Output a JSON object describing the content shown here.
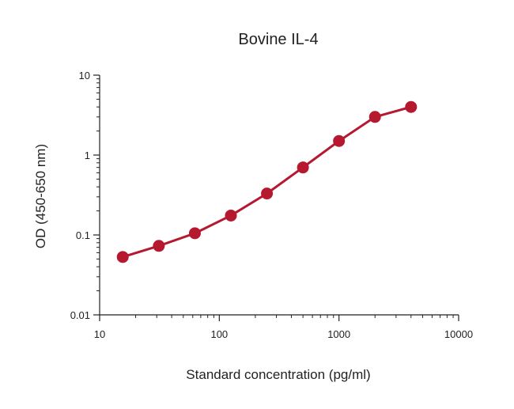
{
  "chart_data": {
    "type": "line",
    "title": "Bovine IL-4",
    "xlabel": "Standard concentration (pg/ml)",
    "ylabel": "OD (450-650 nm)",
    "xscale": "log",
    "yscale": "log",
    "xlim": [
      10,
      10000
    ],
    "ylim": [
      0.01,
      10
    ],
    "xticks": [
      "10",
      "100",
      "1000",
      "10000"
    ],
    "yticks": [
      "0.01",
      "0.1",
      "1",
      "10"
    ],
    "grid": false,
    "legend": "none",
    "series": [
      {
        "color": "#b5182f",
        "x": [
          15.6,
          31.25,
          62.5,
          125,
          250,
          500,
          1000,
          2000,
          4000
        ],
        "y": [
          0.053,
          0.073,
          0.105,
          0.175,
          0.33,
          0.7,
          1.5,
          3.0,
          4.0
        ]
      }
    ]
  }
}
